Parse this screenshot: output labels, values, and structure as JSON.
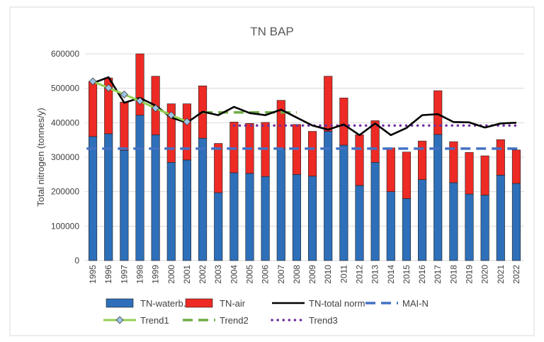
{
  "chart_data": {
    "type": "bar",
    "title": "TN BAP",
    "ylabel": "Total nitrogen (tonnes/y)",
    "xlabel": "",
    "ylim": [
      0,
      600000
    ],
    "yticks": [
      0,
      100000,
      200000,
      300000,
      400000,
      500000,
      600000
    ],
    "grid": true,
    "legend_position": "bottom",
    "categories": [
      "1995",
      "1996",
      "1997",
      "1998",
      "1999",
      "2000",
      "2001",
      "2002",
      "2003",
      "2004",
      "2005",
      "2006",
      "2007",
      "2008",
      "2009",
      "2010",
      "2011",
      "2012",
      "2013",
      "2014",
      "2015",
      "2016",
      "2017",
      "2018",
      "2019",
      "2020",
      "2021",
      "2022"
    ],
    "series": [
      {
        "name": "TN-waterb.",
        "kind": "stacked-bar",
        "color": "#2e6fb9",
        "values": [
          360000,
          368000,
          320000,
          422000,
          365000,
          285000,
          292000,
          355000,
          197000,
          255000,
          253000,
          244000,
          325000,
          250000,
          245000,
          375000,
          335000,
          218000,
          285000,
          200000,
          180000,
          235000,
          366000,
          226000,
          193000,
          190000,
          248000,
          224000
        ]
      },
      {
        "name": "TN-air",
        "kind": "stacked-bar",
        "color": "#ee2a24",
        "values": [
          160000,
          162000,
          140000,
          178000,
          170000,
          170000,
          163000,
          152000,
          143000,
          147000,
          145000,
          157000,
          140000,
          145000,
          130000,
          160000,
          137000,
          147000,
          121000,
          127000,
          135000,
          112000,
          127000,
          119000,
          121000,
          114000,
          103000,
          97000
        ]
      },
      {
        "name": "TN-total norm",
        "kind": "line",
        "color": "#000000",
        "values": [
          515000,
          532000,
          458000,
          472000,
          450000,
          415000,
          400000,
          432000,
          422000,
          446000,
          428000,
          422000,
          438000,
          415000,
          392000,
          380000,
          395000,
          364000,
          398000,
          364000,
          385000,
          422000,
          425000,
          402000,
          401000,
          386000,
          398000,
          400000
        ]
      },
      {
        "name": "MAI-N",
        "kind": "dashed-line",
        "color": "#4472c4",
        "values": [
          325000,
          325000,
          325000,
          325000,
          325000,
          325000,
          325000,
          325000,
          325000,
          325000,
          325000,
          325000,
          325000,
          325000,
          325000,
          325000,
          325000,
          325000,
          325000,
          325000,
          325000,
          325000,
          325000,
          325000,
          325000,
          325000,
          325000,
          325000
        ]
      },
      {
        "name": "Trend1",
        "kind": "marker-line",
        "color": "#92d050",
        "values": [
          520000,
          501000,
          482000,
          463000,
          442000,
          422000,
          403000,
          null,
          null,
          null,
          null,
          null,
          null,
          null,
          null,
          null,
          null,
          null,
          null,
          null,
          null,
          null,
          null,
          null,
          null,
          null,
          null,
          null
        ]
      },
      {
        "name": "Trend2",
        "kind": "dashed-line",
        "color": "#70ad47",
        "values": [
          null,
          null,
          null,
          null,
          null,
          null,
          null,
          430000,
          430000,
          430000,
          430000,
          430000,
          430000,
          430000,
          null,
          null,
          null,
          null,
          null,
          null,
          null,
          null,
          null,
          null,
          null,
          null,
          null,
          null
        ]
      },
      {
        "name": "Trend3",
        "kind": "dotted-line",
        "color": "#7030a0",
        "values": [
          null,
          null,
          null,
          null,
          null,
          null,
          null,
          null,
          null,
          392000,
          392000,
          392000,
          392000,
          392000,
          392000,
          392000,
          392000,
          392000,
          392000,
          392000,
          392000,
          392000,
          392000,
          392000,
          392000,
          392000,
          392000,
          392000
        ]
      }
    ]
  }
}
